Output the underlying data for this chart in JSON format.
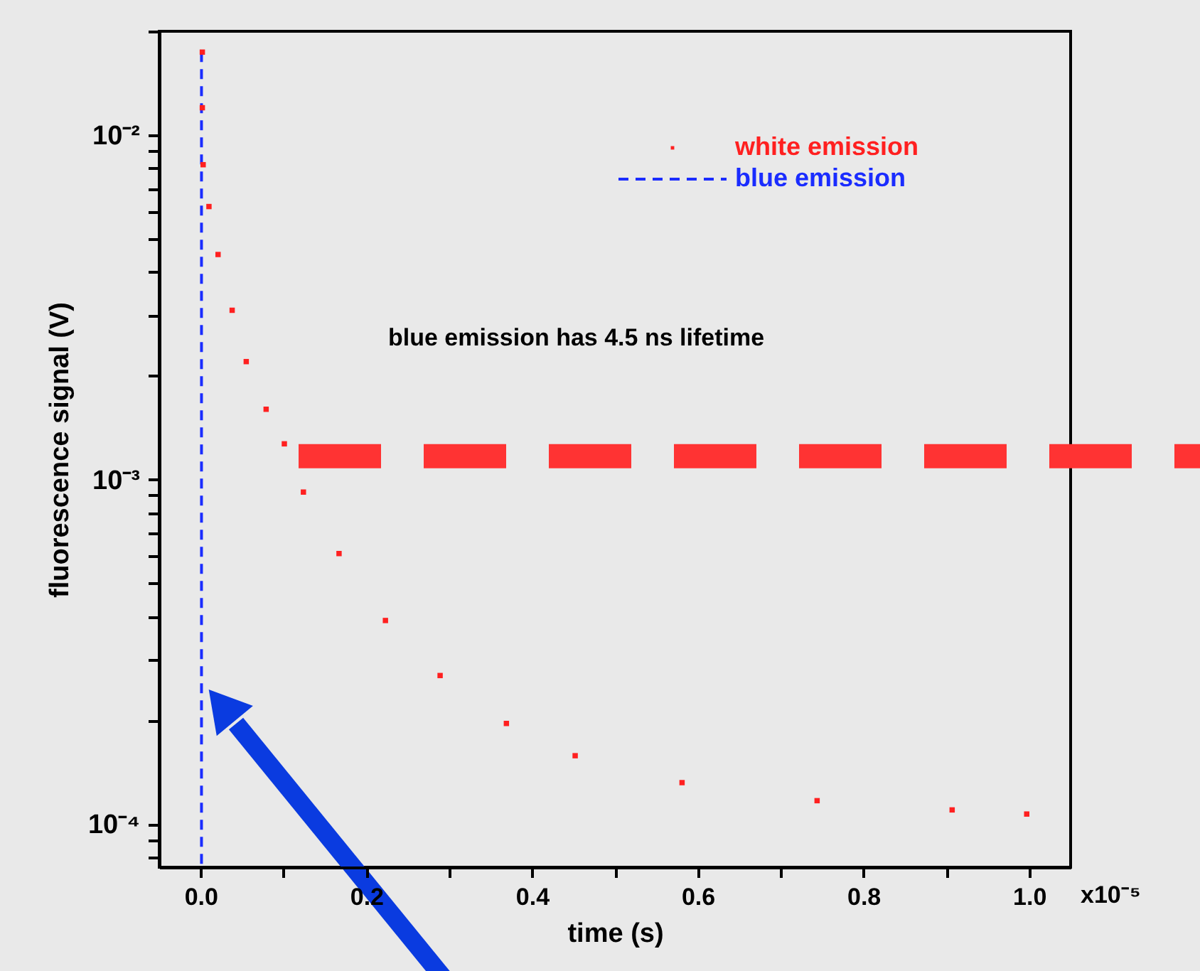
{
  "chart_data": {
    "type": "scatter",
    "xlabel": "time (s)",
    "ylabel": "fluorescence signal (V)",
    "log": "y",
    "legend": "top right",
    "xlim": [
      -0.05,
      1.05
    ],
    "ylim": [
      7.5e-05,
      0.02
    ],
    "xticks": [
      {
        "value": 0,
        "label": "0.0"
      },
      {
        "value": 0.1,
        "label": null
      },
      {
        "value": 0.2,
        "label": "0.2"
      },
      {
        "value": 0.3,
        "label": null
      },
      {
        "value": 0.4,
        "label": "0.4"
      },
      {
        "value": 0.5,
        "label": null
      },
      {
        "value": 0.6,
        "label": "0.6"
      },
      {
        "value": 0.7,
        "label": null
      },
      {
        "value": 0.8,
        "label": "0.8"
      },
      {
        "value": 0.9,
        "label": null
      },
      {
        "value": 1.0,
        "label": "1.0"
      }
    ],
    "yticks": [
      {
        "value": 8e-05,
        "label": null
      },
      {
        "value": 9e-05,
        "label": null
      },
      {
        "value": 0.0001,
        "label": "10⁻⁴"
      },
      {
        "value": 0.0002,
        "label": null
      },
      {
        "value": 0.0003,
        "label": null
      },
      {
        "value": 0.0004,
        "label": null
      },
      {
        "value": 0.0005,
        "label": null
      },
      {
        "value": 0.0006,
        "label": null
      },
      {
        "value": 0.0007,
        "label": null
      },
      {
        "value": 0.0008,
        "label": null
      },
      {
        "value": 0.0009,
        "label": null
      },
      {
        "value": 0.001,
        "label": "10⁻³"
      },
      {
        "value": 0.002,
        "label": null
      },
      {
        "value": 0.003,
        "label": null
      },
      {
        "value": 0.004,
        "label": null
      },
      {
        "value": 0.005,
        "label": null
      },
      {
        "value": 0.006,
        "label": null
      },
      {
        "value": 0.007,
        "label": null
      },
      {
        "value": 0.008,
        "label": null
      },
      {
        "value": 0.009,
        "label": null
      },
      {
        "value": 0.01,
        "label": "10⁻²"
      },
      {
        "value": 0.02,
        "label": null
      }
    ],
    "series": [
      {
        "name": "white emission",
        "color": "#ff2020",
        "marker": "square",
        "x": [
          0.002,
          0.002,
          0.003,
          0.01,
          0.021,
          0.038,
          0.055,
          0.079,
          0.101,
          0.124,
          0.167,
          0.223,
          0.289,
          0.369,
          0.452,
          0.581,
          0.744,
          0.907,
          0.997
        ],
        "values": [
          0.0174,
          0.012,
          0.0082,
          0.0062,
          0.0045,
          0.0031,
          0.0022,
          0.0016,
          0.00127,
          0.00092,
          0.00061,
          0.00039,
          0.00027,
          0.000196,
          0.000158,
          0.000132,
          0.000117,
          0.00011,
          0.000107
        ]
      },
      {
        "name": "blue emission",
        "color": "#1a2cff",
        "type": "line",
        "marker": "none",
        "line_style": "dashed",
        "x": [
          0.001,
          0.001
        ],
        "values": [
          0.0174,
          7.5e-05
        ]
      }
    ],
    "ref_lines": [
      {
        "axis": "y",
        "value": 0.00117,
        "color": "#ff3333",
        "line_style": "dashed"
      }
    ],
    "annotations": [
      "blue emission has 4.5 ns lifetime",
      "x10⁻⁵"
    ]
  }
}
